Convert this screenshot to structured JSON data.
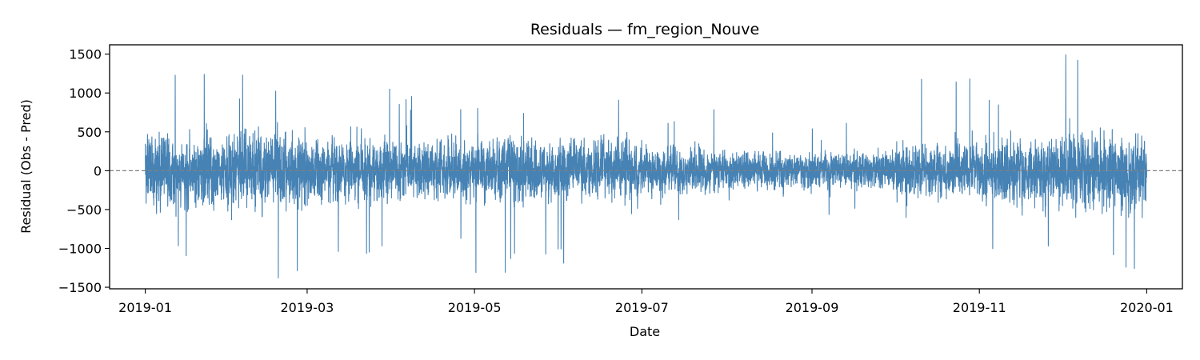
{
  "chart_data": {
    "type": "line",
    "title": "Residuals — fm_region_Nouve",
    "xlabel": "Date",
    "ylabel": "Residual (Obs - Pred)",
    "x_start": "2019-01-01",
    "x_end": "2020-01-01",
    "xlim": [
      "2018-12-19",
      "2020-01-14"
    ],
    "ylim": [
      -1520,
      1620
    ],
    "x_ticks": [
      "2019-01",
      "2019-03",
      "2019-05",
      "2019-07",
      "2019-09",
      "2019-11",
      "2020-01"
    ],
    "y_ticks": [
      1500,
      1000,
      500,
      0,
      -500,
      -1000,
      -1500
    ],
    "y_tick_labels": [
      "1500",
      "1000",
      "500",
      "0",
      "−500",
      "−1000",
      "−1500"
    ],
    "reference_line": {
      "y": 0,
      "style": "dashed",
      "color": "#808080"
    },
    "grid": false,
    "legend": "none",
    "series": [
      {
        "color": "#4682b4",
        "sampling": "hourly",
        "envelope_monthly": [
          {
            "month": "2019-01",
            "max": 1240,
            "min": -1210
          },
          {
            "month": "2019-02",
            "max": 1230,
            "min": -1380
          },
          {
            "month": "2019-03",
            "max": 1080,
            "min": -1100
          },
          {
            "month": "2019-04",
            "max": 1040,
            "min": -900
          },
          {
            "month": "2019-05",
            "max": 900,
            "min": -1310
          },
          {
            "month": "2019-06",
            "max": 960,
            "min": -1190
          },
          {
            "month": "2019-07",
            "max": 800,
            "min": -740
          },
          {
            "month": "2019-08",
            "max": 560,
            "min": -730
          },
          {
            "month": "2019-09",
            "max": 650,
            "min": -620
          },
          {
            "month": "2019-10",
            "max": 1180,
            "min": -640
          },
          {
            "month": "2019-11",
            "max": 1050,
            "min": -1100
          },
          {
            "month": "2019-12",
            "max": 1490,
            "min": -1260
          }
        ],
        "notable_points": [
          {
            "x": "2019-01-22",
            "y": 1240
          },
          {
            "x": "2019-02-05",
            "y": 1230
          },
          {
            "x": "2019-02-18",
            "y": -1380
          },
          {
            "x": "2019-05-01",
            "y": -1310
          },
          {
            "x": "2019-06-02",
            "y": -1190
          },
          {
            "x": "2019-10-28",
            "y": 1180
          },
          {
            "x": "2019-12-02",
            "y": 1490
          },
          {
            "x": "2019-12-27",
            "y": -1260
          }
        ]
      }
    ]
  }
}
